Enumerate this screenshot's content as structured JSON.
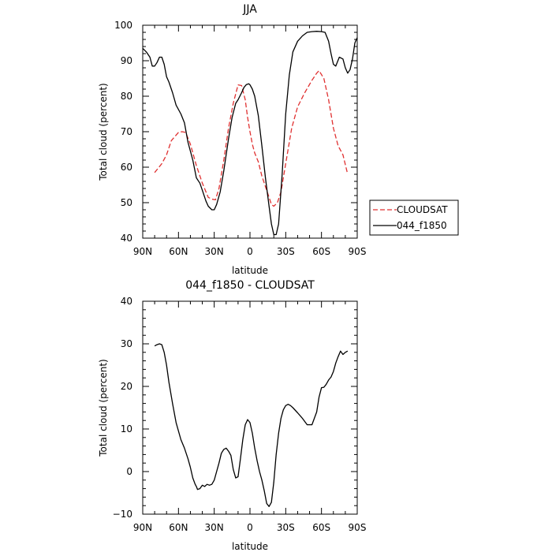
{
  "chart_data": [
    {
      "type": "line",
      "title": "JJA",
      "xlabel": "latitude",
      "ylabel": "Total cloud (percent)",
      "xlim": [
        90,
        -90
      ],
      "ylim": [
        40,
        100
      ],
      "xticks": [
        90,
        60,
        30,
        0,
        -30,
        -60,
        -90
      ],
      "xtick_labels": [
        "90N",
        "60N",
        "30N",
        "0",
        "30S",
        "60S",
        "90S"
      ],
      "yticks": [
        40,
        50,
        60,
        70,
        80,
        90,
        100
      ],
      "ytick_labels": [
        "40",
        "50",
        "60",
        "70",
        "80",
        "90",
        "100"
      ],
      "grid": false,
      "legend": "right",
      "series": [
        {
          "name": "CLOUDSAT",
          "color": "#e03030",
          "dash": "dashed",
          "x": [
            80,
            74,
            70,
            66,
            60,
            57,
            54,
            50,
            45,
            40,
            35,
            32,
            29,
            26,
            22,
            18,
            14,
            10,
            7,
            4,
            2,
            0,
            -2,
            -4,
            -7,
            -10,
            -14,
            -18,
            -20,
            -23,
            -26,
            -30,
            -35,
            -40,
            -46,
            -52,
            -56,
            -58,
            -62,
            -66,
            -70,
            -74,
            -78,
            -82
          ],
          "y": [
            58.5,
            61,
            63.5,
            67.5,
            69.8,
            70,
            69.8,
            66.5,
            60.5,
            55.5,
            51.5,
            51,
            50.8,
            54,
            62,
            71,
            78,
            83.2,
            83,
            79,
            74,
            70,
            66.5,
            64,
            61.5,
            57.5,
            53.5,
            49.5,
            49,
            50,
            53,
            61,
            71,
            77,
            81,
            84.5,
            86.5,
            87.2,
            85,
            79,
            71,
            66,
            63.5,
            58
          ]
        },
        {
          "name": "044_f1850",
          "color": "#000000",
          "dash": "solid",
          "x": [
            90,
            87,
            84,
            82,
            80,
            78,
            76,
            74,
            72,
            70,
            68,
            65,
            62,
            58,
            55,
            52,
            48,
            45,
            42,
            40,
            37,
            35,
            32,
            30,
            28,
            25,
            22,
            18,
            15,
            12,
            10,
            7,
            5,
            3,
            1,
            0,
            -2,
            -4,
            -7,
            -10,
            -13,
            -16,
            -18,
            -20,
            -22,
            -24,
            -27,
            -30,
            -33,
            -36,
            -40,
            -44,
            -48,
            -52,
            -56,
            -60,
            -63,
            -66,
            -68,
            -70,
            -72,
            -75,
            -78,
            -80,
            -82,
            -84,
            -86,
            -88,
            -90
          ],
          "y": [
            93.5,
            92.5,
            91,
            88.5,
            88.5,
            89.5,
            91,
            91,
            89,
            85.5,
            84,
            81,
            77.5,
            75,
            72.5,
            67,
            62,
            57,
            55.5,
            53.5,
            50.5,
            49,
            48,
            48,
            49.5,
            53,
            59,
            68,
            74,
            78,
            79,
            81,
            82.5,
            83.3,
            83.5,
            83.2,
            82,
            80,
            74.5,
            66,
            57,
            49,
            44,
            41,
            41,
            44,
            58,
            75,
            86,
            92.5,
            95.5,
            97,
            98,
            98.2,
            98.3,
            98.2,
            98,
            95.5,
            92,
            89,
            88.5,
            91,
            90.5,
            88,
            86.5,
            87.5,
            90.5,
            95,
            96.5
          ]
        }
      ]
    },
    {
      "type": "line",
      "title": "044_f1850 - CLOUDSAT",
      "xlabel": "latitude",
      "ylabel": "Total cloud (percent)",
      "xlim": [
        90,
        -90
      ],
      "ylim": [
        -10,
        40
      ],
      "xticks": [
        90,
        60,
        30,
        0,
        -30,
        -60,
        -90
      ],
      "xtick_labels": [
        "90N",
        "60N",
        "30N",
        "0",
        "30S",
        "60S",
        "90S"
      ],
      "yticks": [
        -10,
        0,
        10,
        20,
        30,
        40
      ],
      "ytick_labels": [
        "−10",
        "0",
        "10",
        "20",
        "30",
        "40"
      ],
      "grid": false,
      "series": [
        {
          "color": "#000000",
          "dash": "solid",
          "x": [
            80,
            78,
            76,
            74,
            72,
            70,
            68,
            65,
            62,
            58,
            55,
            52,
            50,
            48,
            46,
            45,
            44,
            42,
            40,
            38,
            36,
            34,
            32,
            30,
            28,
            26,
            24,
            22,
            20,
            18,
            16,
            14,
            12,
            10,
            8,
            6,
            4,
            2,
            0,
            -2,
            -4,
            -6,
            -8,
            -10,
            -12,
            -14,
            -16,
            -18,
            -20,
            -22,
            -24,
            -26,
            -28,
            -30,
            -32,
            -34,
            -36,
            -40,
            -44,
            -48,
            -52,
            -56,
            -58,
            -60,
            -62,
            -64,
            -66,
            -68,
            -70,
            -72,
            -74,
            -76,
            -78,
            -80,
            -82
          ],
          "y": [
            29.5,
            29.8,
            30,
            29.8,
            28,
            25,
            21,
            16,
            11.5,
            7.5,
            5.5,
            3,
            1,
            -1.5,
            -3,
            -3.5,
            -4.2,
            -4,
            -3.2,
            -3.5,
            -3,
            -3.2,
            -3,
            -2,
            0,
            2,
            4.3,
            5.2,
            5.5,
            4.8,
            3.8,
            0.5,
            -1.5,
            -1.2,
            3,
            7.5,
            11,
            12.2,
            11.5,
            9,
            5.5,
            2.5,
            0,
            -2,
            -4.5,
            -7.5,
            -8.2,
            -7.2,
            -2.5,
            4,
            9,
            12.5,
            14.5,
            15.5,
            15.8,
            15.5,
            15,
            13.8,
            12.5,
            11,
            11,
            14,
            17.5,
            19.7,
            19.8,
            20.5,
            21.5,
            22.2,
            23.5,
            25.5,
            27,
            28.3,
            27.5,
            28,
            28.3
          ]
        }
      ]
    }
  ]
}
